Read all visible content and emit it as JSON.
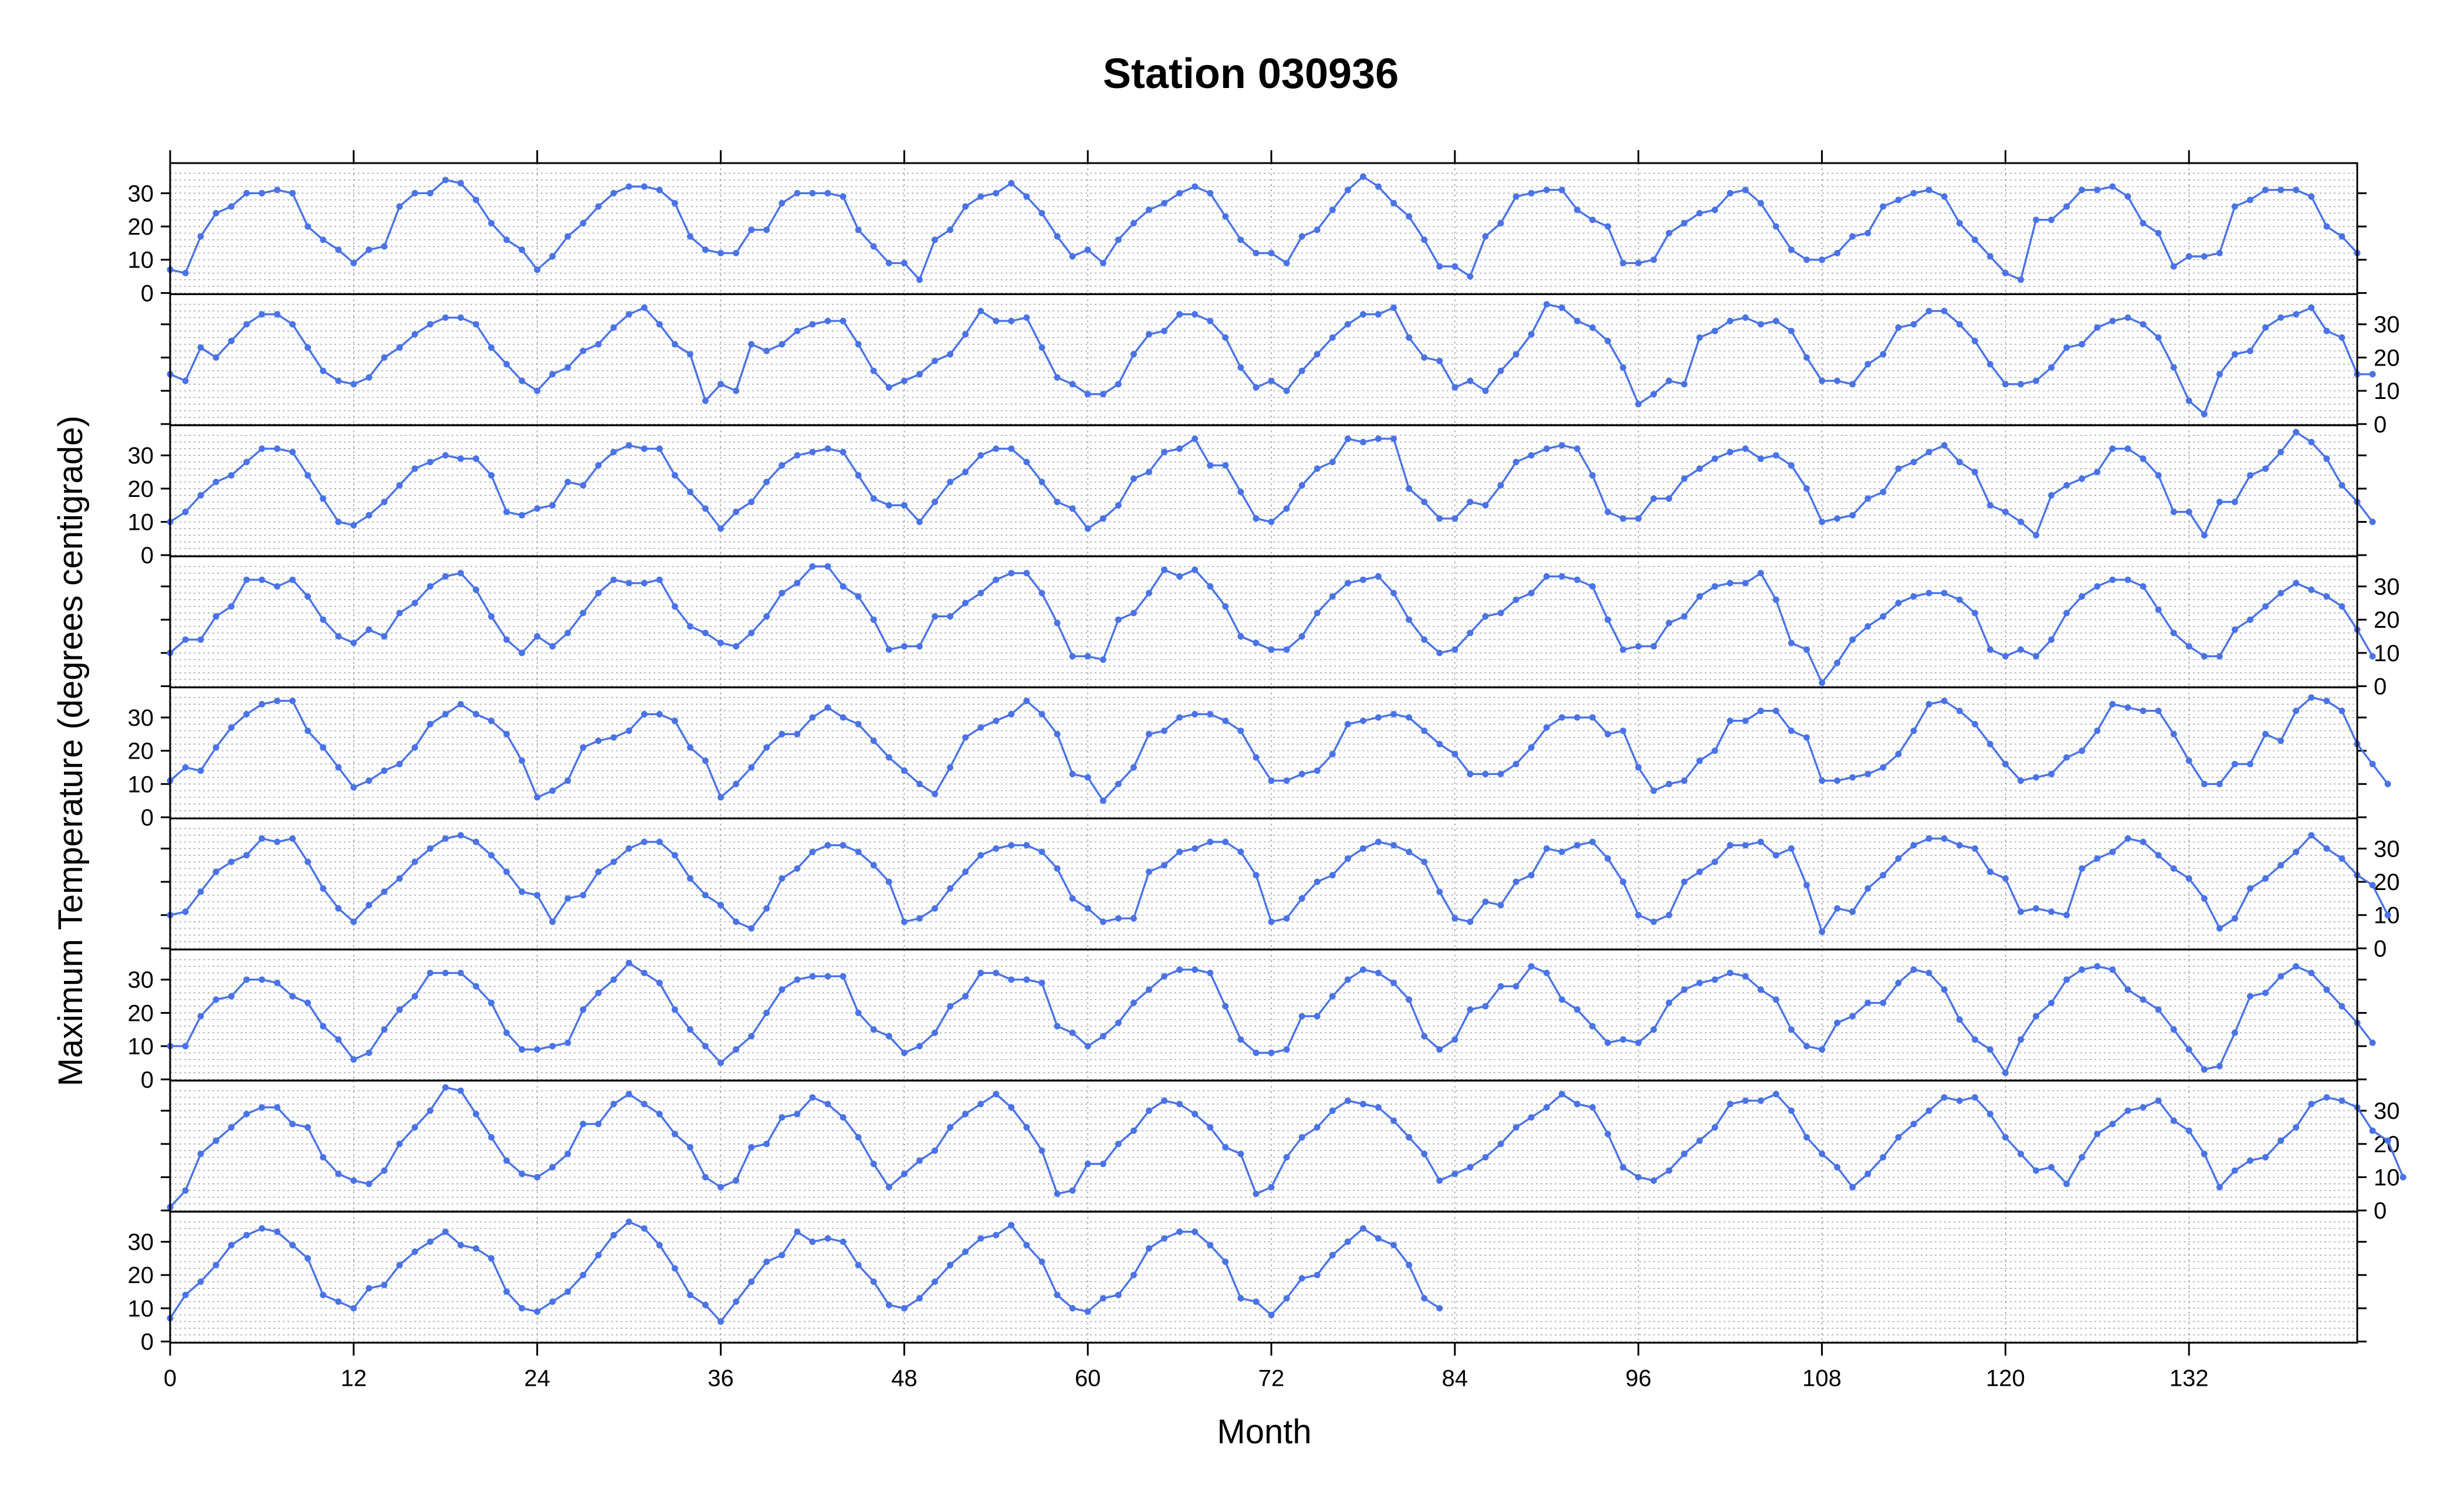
{
  "chart_data": {
    "type": "line",
    "title": "Station 030936",
    "xlabel": "Month",
    "ylabel": "Maximum Temperature (degrees centigrade)",
    "xlim": [
      0,
      143
    ],
    "ylim": [
      0,
      38
    ],
    "x_ticks": [
      0,
      12,
      24,
      36,
      48,
      60,
      72,
      84,
      96,
      108,
      120,
      132
    ],
    "y_ticks": [
      0,
      10,
      20,
      30
    ],
    "layout": "9 stacked panels sharing the Month axis (0-143); x ticks drawn at top and bottom; y tick labels alternate left/right; dotted grid",
    "colors": {
      "series": "#4a73e8",
      "frame": "#000000",
      "grid": "#a8a8a8"
    },
    "panels": [
      {
        "values": [
          7,
          6,
          17,
          24,
          26,
          30,
          30,
          31,
          30,
          20,
          16,
          13,
          9,
          13,
          14,
          26,
          30,
          30,
          34,
          33,
          28,
          21,
          16,
          13,
          7,
          11,
          17,
          21,
          26,
          30,
          32,
          32,
          31,
          27,
          17,
          13,
          12,
          12,
          19,
          19,
          27,
          30,
          30,
          30,
          29,
          19,
          14,
          9,
          9,
          4,
          16,
          19,
          26,
          29,
          30,
          33,
          29,
          24,
          17,
          11,
          13,
          9,
          16,
          21,
          25,
          27,
          30,
          32,
          30,
          23,
          16,
          12,
          12,
          9,
          17,
          19,
          25,
          31,
          35,
          32,
          27,
          23,
          16,
          8,
          8,
          5,
          17,
          21,
          29,
          30,
          31,
          31,
          25,
          22,
          20,
          9,
          9,
          10,
          18,
          21,
          24,
          25,
          30,
          31,
          27,
          20,
          13,
          10,
          10,
          12,
          17,
          18,
          26,
          28,
          30,
          31,
          29,
          21,
          16,
          11,
          6,
          4,
          22,
          22,
          26,
          31,
          31,
          32,
          29,
          21,
          18,
          8,
          11,
          11,
          12,
          26,
          28,
          31,
          31,
          31,
          29,
          20,
          17,
          12
        ]
      },
      {
        "values": [
          15,
          13,
          23,
          20,
          25,
          30,
          33,
          33,
          30,
          23,
          16,
          13,
          12,
          14,
          20,
          23,
          27,
          30,
          32,
          32,
          30,
          23,
          18,
          13,
          10,
          15,
          17,
          22,
          24,
          29,
          33,
          35,
          30,
          24,
          21,
          7,
          12,
          10,
          24,
          22,
          24,
          28,
          30,
          31,
          31,
          24,
          16,
          11,
          13,
          15,
          19,
          21,
          27,
          34,
          31,
          31,
          32,
          23,
          14,
          12,
          9,
          9,
          12,
          21,
          27,
          28,
          33,
          33,
          31,
          26,
          17,
          11,
          13,
          10,
          16,
          21,
          26,
          30,
          33,
          33,
          35,
          26,
          20,
          19,
          11,
          13,
          10,
          16,
          21,
          27,
          36,
          35,
          31,
          29,
          25,
          17,
          6,
          9,
          13,
          12,
          26,
          28,
          31,
          32,
          30,
          31,
          28,
          20,
          13,
          13,
          12,
          18,
          21,
          29,
          30,
          34,
          34,
          30,
          25,
          18,
          12,
          12,
          13,
          17,
          23,
          24,
          29,
          31,
          32,
          30,
          26,
          17,
          7,
          3,
          15,
          21,
          22,
          29,
          32,
          33,
          35,
          28,
          26,
          15,
          15
        ]
      },
      {
        "values": [
          10,
          13,
          18,
          22,
          24,
          28,
          32,
          32,
          31,
          24,
          17,
          10,
          9,
          12,
          16,
          21,
          26,
          28,
          30,
          29,
          29,
          24,
          13,
          12,
          14,
          15,
          22,
          21,
          27,
          31,
          33,
          32,
          32,
          24,
          19,
          14,
          8,
          13,
          16,
          22,
          27,
          30,
          31,
          32,
          31,
          24,
          17,
          15,
          15,
          10,
          16,
          22,
          25,
          30,
          32,
          32,
          28,
          22,
          16,
          14,
          8,
          11,
          15,
          23,
          25,
          31,
          32,
          35,
          27,
          27,
          19,
          11,
          10,
          14,
          21,
          26,
          28,
          35,
          34,
          35,
          35,
          20,
          16,
          11,
          11,
          16,
          15,
          21,
          28,
          30,
          32,
          33,
          32,
          24,
          13,
          11,
          11,
          17,
          17,
          23,
          26,
          29,
          31,
          32,
          29,
          30,
          27,
          20,
          10,
          11,
          12,
          17,
          19,
          26,
          28,
          31,
          33,
          28,
          25,
          15,
          13,
          10,
          6,
          18,
          21,
          23,
          25,
          32,
          32,
          29,
          24,
          13,
          13,
          6,
          16,
          16,
          24,
          26,
          31,
          37,
          34,
          29,
          21,
          16,
          10
        ]
      },
      {
        "values": [
          10,
          14,
          14,
          21,
          24,
          32,
          32,
          30,
          32,
          27,
          20,
          15,
          13,
          17,
          15,
          22,
          25,
          30,
          33,
          34,
          29,
          21,
          14,
          10,
          15,
          12,
          16,
          22,
          28,
          32,
          31,
          31,
          32,
          24,
          18,
          16,
          13,
          12,
          16,
          21,
          28,
          31,
          36,
          36,
          30,
          27,
          20,
          11,
          12,
          12,
          21,
          21,
          25,
          28,
          32,
          34,
          34,
          28,
          19,
          9,
          9,
          8,
          20,
          22,
          28,
          35,
          33,
          35,
          30,
          24,
          15,
          13,
          11,
          11,
          15,
          22,
          27,
          31,
          32,
          33,
          28,
          20,
          14,
          10,
          11,
          16,
          21,
          22,
          26,
          28,
          33,
          33,
          32,
          30,
          20,
          11,
          12,
          12,
          19,
          21,
          27,
          30,
          31,
          31,
          34,
          26,
          13,
          11,
          1,
          7,
          14,
          18,
          21,
          25,
          27,
          28,
          28,
          26,
          22,
          11,
          9,
          11,
          9,
          14,
          22,
          27,
          30,
          32,
          32,
          30,
          23,
          16,
          12,
          9,
          9,
          17,
          20,
          24,
          28,
          31,
          29,
          27,
          24,
          17,
          9
        ]
      },
      {
        "values": [
          11,
          15,
          14,
          21,
          27,
          31,
          34,
          35,
          35,
          26,
          21,
          15,
          9,
          11,
          14,
          16,
          21,
          28,
          31,
          34,
          31,
          29,
          25,
          17,
          6,
          8,
          11,
          21,
          23,
          24,
          26,
          31,
          31,
          29,
          21,
          17,
          6,
          10,
          15,
          21,
          25,
          25,
          30,
          33,
          30,
          28,
          23,
          18,
          14,
          10,
          7,
          15,
          24,
          27,
          29,
          31,
          35,
          31,
          25,
          13,
          12,
          5,
          10,
          15,
          25,
          26,
          30,
          31,
          31,
          29,
          26,
          18,
          11,
          11,
          13,
          14,
          19,
          28,
          29,
          30,
          31,
          30,
          26,
          22,
          19,
          13,
          13,
          13,
          16,
          21,
          27,
          30,
          30,
          30,
          25,
          26,
          15,
          8,
          10,
          11,
          17,
          20,
          29,
          29,
          32,
          32,
          26,
          24,
          11,
          11,
          12,
          13,
          15,
          19,
          26,
          34,
          35,
          32,
          28,
          22,
          16,
          11,
          12,
          13,
          18,
          20,
          26,
          34,
          33,
          32,
          32,
          25,
          17,
          10,
          10,
          16,
          16,
          25,
          23,
          32,
          36,
          35,
          32,
          22,
          16,
          10
        ]
      },
      {
        "values": [
          10,
          11,
          17,
          23,
          26,
          28,
          33,
          32,
          33,
          26,
          18,
          12,
          8,
          13,
          17,
          21,
          26,
          30,
          33,
          34,
          32,
          28,
          23,
          17,
          16,
          8,
          15,
          16,
          23,
          26,
          30,
          32,
          32,
          28,
          21,
          16,
          13,
          8,
          6,
          12,
          21,
          24,
          29,
          31,
          31,
          29,
          25,
          20,
          8,
          9,
          12,
          18,
          23,
          28,
          30,
          31,
          31,
          29,
          24,
          15,
          12,
          8,
          9,
          9,
          23,
          25,
          29,
          30,
          32,
          32,
          29,
          22,
          8,
          9,
          15,
          20,
          22,
          27,
          30,
          32,
          31,
          29,
          26,
          17,
          9,
          8,
          14,
          13,
          20,
          22,
          30,
          29,
          31,
          32,
          27,
          20,
          10,
          8,
          10,
          20,
          23,
          26,
          31,
          31,
          32,
          28,
          30,
          19,
          5,
          12,
          11,
          18,
          22,
          27,
          31,
          33,
          33,
          31,
          30,
          23,
          21,
          11,
          12,
          11,
          10,
          24,
          27,
          29,
          33,
          32,
          28,
          24,
          21,
          15,
          6,
          9,
          18,
          21,
          25,
          29,
          34,
          30,
          27,
          22,
          19,
          10
        ]
      },
      {
        "values": [
          10,
          10,
          19,
          24,
          25,
          30,
          30,
          29,
          25,
          23,
          16,
          12,
          6,
          8,
          15,
          21,
          25,
          32,
          32,
          32,
          28,
          23,
          14,
          9,
          9,
          10,
          11,
          21,
          26,
          30,
          35,
          32,
          29,
          21,
          15,
          10,
          5,
          9,
          13,
          20,
          27,
          30,
          31,
          31,
          31,
          20,
          15,
          13,
          8,
          10,
          14,
          22,
          25,
          32,
          32,
          30,
          30,
          29,
          16,
          14,
          10,
          13,
          17,
          23,
          27,
          31,
          33,
          33,
          32,
          22,
          12,
          8,
          8,
          9,
          19,
          19,
          25,
          30,
          33,
          32,
          29,
          24,
          13,
          9,
          12,
          21,
          22,
          28,
          28,
          34,
          32,
          24,
          21,
          16,
          11,
          12,
          11,
          15,
          23,
          27,
          29,
          30,
          32,
          31,
          27,
          24,
          15,
          10,
          9,
          17,
          19,
          23,
          23,
          29,
          33,
          32,
          27,
          18,
          12,
          9,
          2,
          12,
          19,
          23,
          30,
          33,
          34,
          33,
          27,
          24,
          21,
          15,
          9,
          3,
          4,
          14,
          25,
          26,
          31,
          34,
          32,
          27,
          22,
          17,
          11
        ]
      },
      {
        "values": [
          1,
          6,
          17,
          21,
          25,
          29,
          31,
          31,
          26,
          25,
          16,
          11,
          9,
          8,
          12,
          20,
          25,
          30,
          37,
          36,
          29,
          22,
          15,
          11,
          10,
          13,
          17,
          26,
          26,
          32,
          35,
          32,
          29,
          23,
          19,
          10,
          7,
          9,
          19,
          20,
          28,
          29,
          34,
          32,
          28,
          22,
          14,
          7,
          11,
          15,
          18,
          25,
          29,
          32,
          35,
          31,
          25,
          18,
          5,
          6,
          14,
          14,
          20,
          24,
          30,
          33,
          32,
          29,
          25,
          19,
          17,
          5,
          7,
          16,
          22,
          25,
          30,
          33,
          32,
          31,
          27,
          22,
          17,
          9,
          11,
          13,
          16,
          20,
          25,
          28,
          31,
          35,
          32,
          31,
          23,
          13,
          10,
          9,
          12,
          17,
          21,
          25,
          32,
          33,
          33,
          35,
          30,
          22,
          17,
          13,
          7,
          11,
          16,
          22,
          26,
          30,
          34,
          33,
          34,
          29,
          22,
          17,
          12,
          13,
          8,
          16,
          23,
          26,
          30,
          31,
          33,
          27,
          24,
          17,
          7,
          12,
          15,
          16,
          21,
          25,
          32,
          34,
          33,
          31,
          24,
          21,
          10
        ]
      },
      {
        "values": [
          7,
          14,
          18,
          23,
          29,
          32,
          34,
          33,
          29,
          25,
          14,
          12,
          10,
          16,
          17,
          23,
          27,
          30,
          33,
          29,
          28,
          25,
          15,
          10,
          9,
          12,
          15,
          20,
          26,
          32,
          36,
          34,
          29,
          22,
          14,
          11,
          6,
          12,
          18,
          24,
          26,
          33,
          30,
          31,
          30,
          23,
          18,
          11,
          10,
          13,
          18,
          23,
          27,
          31,
          32,
          35,
          29,
          24,
          14,
          10,
          9,
          13,
          14,
          20,
          28,
          31,
          33,
          33,
          29,
          24,
          13,
          12,
          8,
          13,
          19,
          20,
          26,
          30,
          34,
          31,
          29,
          23,
          13,
          10
        ]
      }
    ]
  }
}
